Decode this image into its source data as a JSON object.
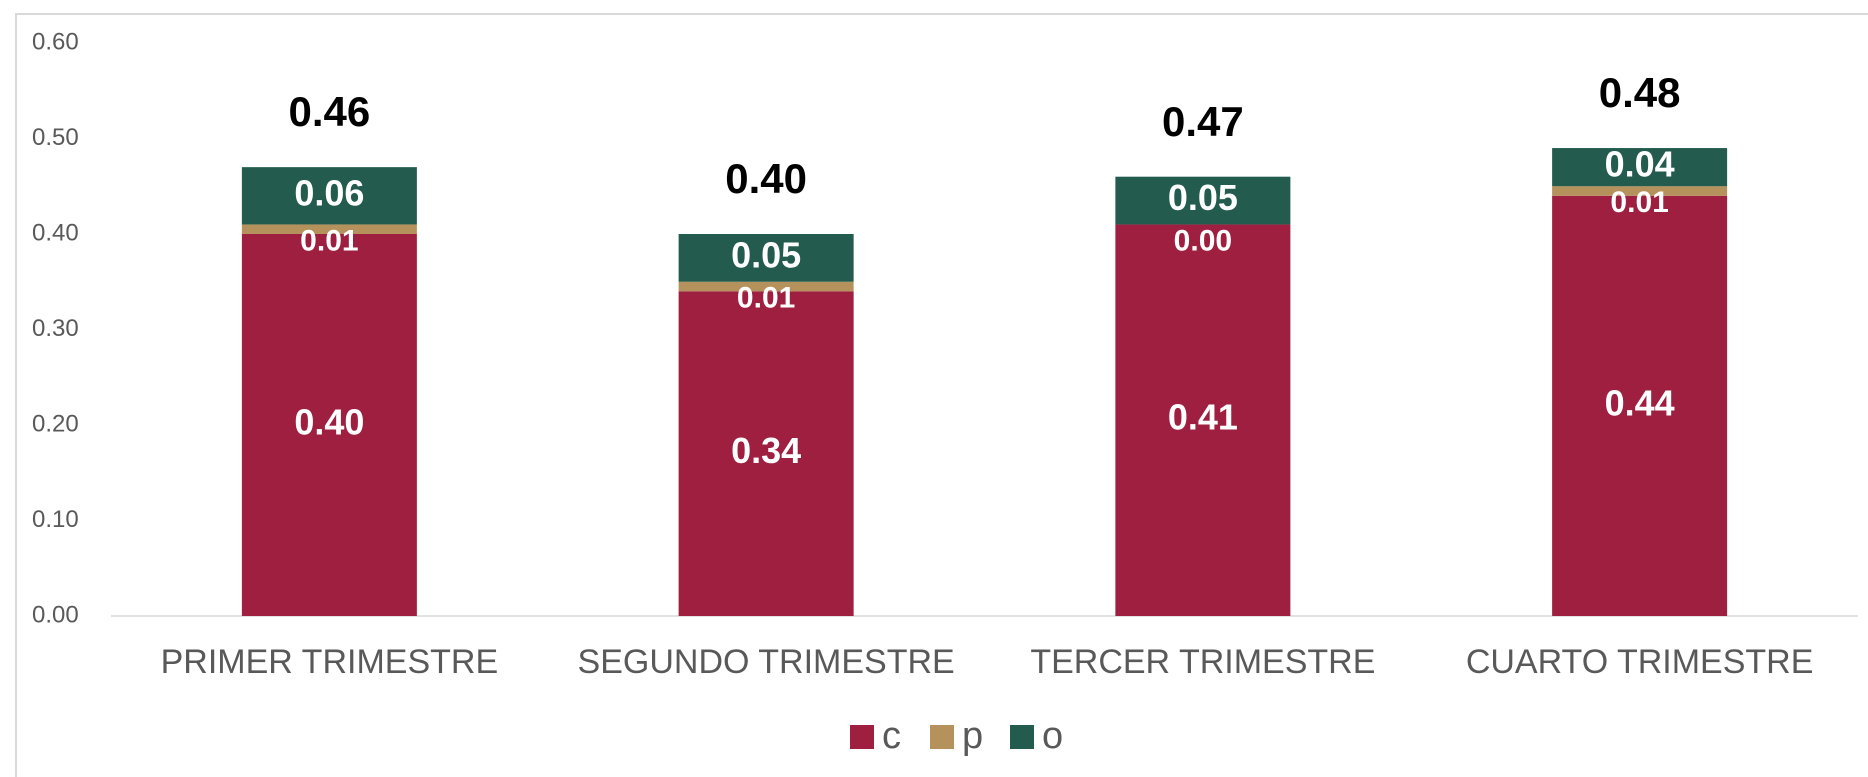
{
  "chart_data": {
    "type": "stacked_bar",
    "categories": [
      "PRIMER TRIMESTRE",
      "SEGUNDO TRIMESTRE",
      "TERCER TRIMESTRE",
      "CUARTO TRIMESTRE"
    ],
    "series": [
      {
        "name": "c",
        "color": "#9e1f3f",
        "values": [
          0.4,
          0.34,
          0.41,
          0.44
        ],
        "value_labels": [
          "0.40",
          "0.34",
          "0.41",
          "0.44"
        ]
      },
      {
        "name": "p",
        "color": "#b5915b",
        "values": [
          0.01,
          0.01,
          0.0,
          0.01
        ],
        "value_labels": [
          "0.01",
          "0.01",
          "0.00",
          "0.01"
        ]
      },
      {
        "name": "o",
        "color": "#235b4e",
        "values": [
          0.06,
          0.05,
          0.05,
          0.04
        ],
        "value_labels": [
          "0.06",
          "0.05",
          "0.05",
          "0.04"
        ]
      }
    ],
    "totals": [
      0.46,
      0.4,
      0.47,
      0.48
    ],
    "total_labels": [
      "0.46",
      "0.40",
      "0.47",
      "0.48"
    ],
    "ylim": [
      0,
      0.6
    ],
    "yticks": [
      {
        "value": 0,
        "label": "0.00"
      },
      {
        "value": 0.1,
        "label": "0.10"
      },
      {
        "value": 0.2,
        "label": "0.20"
      },
      {
        "value": 0.3,
        "label": "0.30"
      },
      {
        "value": 0.4,
        "label": "0.40"
      },
      {
        "value": 0.5,
        "label": "0.50"
      },
      {
        "value": 0.6,
        "label": "0.60"
      }
    ],
    "legend": "bottom"
  }
}
